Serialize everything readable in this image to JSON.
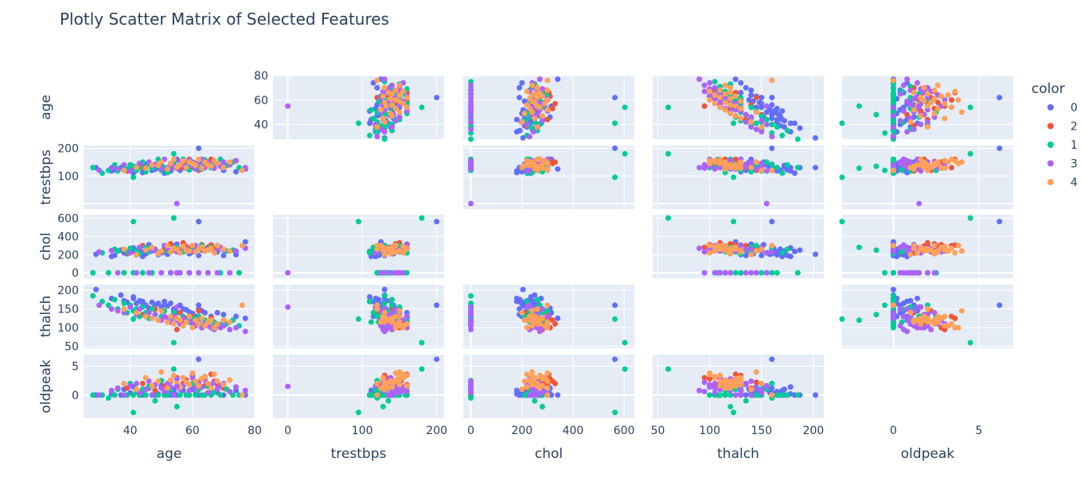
{
  "chart_data": {
    "type": "scatter",
    "title": "Plotly Scatter Matrix of Selected Features",
    "legend": {
      "title": "color",
      "placement": "top-right",
      "labels": [
        "0",
        "2",
        "1",
        "3",
        "4"
      ]
    },
    "colors": {
      "0": "#636efa",
      "2": "#ef553b",
      "1": "#00cc96",
      "3": "#ab63fa",
      "4": "#ffa15a",
      "panel_bg": "#e5ecf6",
      "grid": "#ffffff",
      "text": "#2a3f5f"
    },
    "diagonal_visible": false,
    "grid": true,
    "dimensions": [
      {
        "name": "age",
        "label": "age",
        "range": [
          25,
          80
        ],
        "ticks": [
          40,
          60,
          80
        ],
        "y_ticks_shown": [
          40,
          60,
          80
        ],
        "y_range": [
          28,
          80
        ]
      },
      {
        "name": "trestbps",
        "label": "trestbps",
        "range": [
          -20,
          210
        ],
        "ticks": [
          0,
          100,
          200
        ],
        "y_ticks_shown": [
          100,
          200
        ],
        "y_range": [
          -20,
          210
        ]
      },
      {
        "name": "chol",
        "label": "chol",
        "range": [
          -30,
          640
        ],
        "ticks": [
          0,
          200,
          400,
          600
        ],
        "y_ticks_shown": [
          0,
          200,
          400,
          600
        ],
        "y_range": [
          -60,
          640
        ]
      },
      {
        "name": "thalch",
        "label": "thalch",
        "range": [
          45,
          210
        ],
        "ticks": [
          50,
          100,
          150,
          200
        ],
        "y_ticks_shown": [
          50,
          100,
          150,
          200
        ],
        "y_range": [
          45,
          215
        ]
      },
      {
        "name": "oldpeak",
        "label": "oldpeak",
        "range": [
          -3,
          7
        ],
        "ticks": [
          0,
          5
        ],
        "y_ticks_shown": [
          0,
          5
        ],
        "y_range": [
          -4,
          7
        ]
      }
    ],
    "groups": [
      {
        "name": "0",
        "age": [
          29,
          34,
          35,
          37,
          38,
          39,
          40,
          41,
          41,
          42,
          43,
          44,
          44,
          45,
          46,
          47,
          48,
          49,
          50,
          51,
          51,
          52,
          53,
          54,
          54,
          55,
          56,
          57,
          58,
          59,
          60,
          61,
          62,
          63,
          64,
          66,
          68,
          70,
          74,
          77
        ],
        "trestbps": [
          130,
          118,
          122,
          130,
          138,
          120,
          140,
          130,
          110,
          120,
          132,
          128,
          112,
          142,
          150,
          120,
          124,
          130,
          140,
          110,
          125,
          128,
          118,
          132,
          150,
          160,
          120,
          130,
          128,
          140,
          150,
          145,
          130,
          125,
          138,
          160,
          144,
          120,
          115,
          125
        ],
        "chol": [
          204,
          180,
          192,
          250,
          220,
          210,
          260,
          275,
          235,
          198,
          240,
          230,
          180,
          210,
          310,
          260,
          245,
          200,
          220,
          226,
          265,
          205,
          230,
          270,
          290,
          315,
          240,
          280,
          270,
          210,
          230,
          260,
          190,
          250,
          240,
          305,
          230,
          190,
          200,
          340
        ],
        "thalch": [
          202,
          178,
          175,
          187,
          172,
          168,
          160,
          178,
          182,
          165,
          172,
          165,
          170,
          160,
          152,
          168,
          160,
          165,
          155,
          170,
          162,
          158,
          165,
          150,
          145,
          140,
          160,
          150,
          148,
          142,
          138,
          130,
          150,
          145,
          140,
          130,
          140,
          135,
          130,
          125
        ],
        "oldpeak": [
          0,
          0.2,
          0,
          0,
          1.0,
          0,
          0.4,
          1.4,
          0,
          0.6,
          0,
          0,
          0.8,
          0,
          1.2,
          0,
          0,
          0.2,
          1.6,
          0,
          0,
          0.4,
          0,
          1.0,
          0.6,
          0,
          1.2,
          0.8,
          0,
          0,
          1.0,
          0.2,
          0,
          1.4,
          0,
          0.6,
          0.4,
          0,
          0.8,
          0
        ]
      },
      {
        "name": "2",
        "age": [
          39,
          44,
          48,
          51,
          53,
          55,
          56,
          57,
          58,
          59,
          60,
          61,
          62,
          63,
          64,
          65,
          66,
          67,
          68,
          70
        ],
        "trestbps": [
          118,
          130,
          140,
          125,
          145,
          132,
          128,
          150,
          146,
          160,
          130,
          140,
          120,
          150,
          135,
          138,
          160,
          152,
          144,
          130
        ],
        "chol": [
          219,
          300,
          260,
          245,
          320,
          280,
          250,
          330,
          290,
          270,
          300,
          240,
          264,
          310,
          260,
          282,
          305,
          270,
          295,
          250
        ],
        "thalch": [
          140,
          135,
          150,
          130,
          120,
          95,
          140,
          110,
          125,
          115,
          130,
          105,
          145,
          100,
          120,
          115,
          125,
          110,
          105,
          120
        ],
        "oldpeak": [
          1.2,
          2.0,
          0.8,
          1.6,
          2.4,
          3.0,
          1.0,
          2.0,
          2.6,
          1.8,
          3.4,
          1.4,
          2.2,
          2.8,
          1.6,
          2.0,
          3.6,
          2.4,
          1.8,
          1.2
        ]
      },
      {
        "name": "1",
        "age": [
          28,
          31,
          33,
          35,
          36,
          38,
          39,
          40,
          41,
          42,
          43,
          44,
          45,
          46,
          47,
          48,
          49,
          50,
          51,
          52,
          53,
          54,
          55,
          56,
          57,
          58,
          59,
          60,
          61,
          62,
          63,
          64,
          65,
          66,
          67,
          69,
          71,
          73,
          75
        ],
        "trestbps": [
          130,
          110,
          120,
          140,
          118,
          130,
          125,
          140,
          135,
          120,
          130,
          150,
          115,
          142,
          128,
          135,
          160,
          120,
          130,
          112,
          138,
          145,
          128,
          150,
          160,
          135,
          122,
          140,
          130,
          125,
          150,
          158,
          145,
          130,
          140,
          160,
          138,
          150,
          130
        ],
        "chol": [
          0,
          220,
          0,
          260,
          240,
          0,
          230,
          270,
          0,
          250,
          210,
          0,
          280,
          230,
          0,
          250,
          220,
          0,
          300,
          240,
          0,
          260,
          280,
          0,
          230,
          250,
          0,
          270,
          240,
          0,
          300,
          260,
          0,
          280,
          230,
          0,
          240,
          250,
          0
        ],
        "thalch": [
          185,
          170,
          160,
          175,
          150,
          165,
          140,
          160,
          145,
          150,
          130,
          155,
          140,
          125,
          150,
          135,
          120,
          130,
          145,
          115,
          125,
          140,
          120,
          110,
          130,
          120,
          115,
          125,
          110,
          130,
          105,
          120,
          110,
          100,
          115,
          108,
          110,
          120,
          105
        ],
        "oldpeak": [
          0,
          0,
          -0.5,
          0,
          1.0,
          0,
          0,
          2.0,
          0,
          0.5,
          0,
          1.0,
          0,
          1.5,
          0,
          -1.0,
          0,
          2.5,
          0,
          0,
          1.0,
          0,
          -2.0,
          0,
          1.5,
          0,
          0,
          2.0,
          0,
          1.0,
          0,
          0,
          1.5,
          0,
          0.5,
          0,
          1.0,
          0,
          0
        ]
      },
      {
        "name": "3",
        "age": [
          30,
          34,
          36,
          38,
          40,
          42,
          43,
          45,
          46,
          47,
          48,
          50,
          51,
          52,
          53,
          54,
          55,
          56,
          57,
          58,
          59,
          60,
          61,
          62,
          63,
          64,
          65,
          66,
          67,
          68,
          69,
          70,
          72,
          74,
          77
        ],
        "trestbps": [
          120,
          130,
          125,
          140,
          118,
          132,
          145,
          128,
          150,
          138,
          142,
          125,
          160,
          130,
          145,
          135,
          128,
          150,
          140,
          132,
          155,
          138,
          125,
          145,
          160,
          130,
          150,
          140,
          128,
          145,
          135,
          150,
          140,
          155,
          130
        ],
        "chol": [
          230,
          245,
          0,
          260,
          220,
          0,
          280,
          250,
          0,
          240,
          260,
          0,
          300,
          270,
          0,
          250,
          230,
          0,
          280,
          260,
          0,
          240,
          300,
          0,
          270,
          250,
          0,
          260,
          230,
          0,
          280,
          250,
          0,
          240,
          270
        ],
        "thalch": [
          160,
          150,
          145,
          140,
          155,
          135,
          150,
          130,
          140,
          125,
          135,
          120,
          130,
          125,
          115,
          130,
          120,
          110,
          125,
          115,
          120,
          110,
          105,
          115,
          100,
          110,
          105,
          100,
          95,
          110,
          100,
          105,
          95,
          100,
          90
        ],
        "oldpeak": [
          0,
          0.8,
          1.2,
          0,
          1.6,
          2.0,
          0.4,
          1.0,
          2.4,
          0,
          1.8,
          1.2,
          0.6,
          2.0,
          1.4,
          0,
          2.8,
          1.0,
          1.6,
          2.2,
          0.8,
          3.0,
          1.2,
          2.0,
          1.4,
          2.6,
          0.4,
          1.8,
          2.2,
          1.0,
          1.6,
          2.0,
          0.6,
          1.4,
          0.8
        ]
      },
      {
        "name": "4",
        "age": [
          38,
          42,
          45,
          47,
          49,
          50,
          52,
          53,
          54,
          55,
          56,
          57,
          58,
          59,
          60,
          61,
          62,
          63,
          64,
          65,
          66,
          67,
          68,
          70,
          72,
          76
        ],
        "trestbps": [
          120,
          130,
          128,
          140,
          138,
          150,
          125,
          145,
          160,
          132,
          140,
          155,
          130,
          150,
          145,
          138,
          160,
          128,
          150,
          140,
          135,
          155,
          145,
          130,
          150,
          120
        ],
        "chol": [
          260,
          200,
          250,
          280,
          210,
          240,
          300,
          230,
          270,
          260,
          220,
          290,
          250,
          240,
          300,
          230,
          260,
          280,
          240,
          250,
          270,
          220,
          300,
          260,
          240,
          300
        ],
        "thalch": [
          150,
          140,
          130,
          125,
          120,
          145,
          115,
          130,
          110,
          125,
          120,
          105,
          115,
          130,
          100,
          120,
          110,
          125,
          105,
          115,
          120,
          100,
          110,
          120,
          115,
          160
        ],
        "oldpeak": [
          2.0,
          1.0,
          3.0,
          1.6,
          2.4,
          4.0,
          1.2,
          2.6,
          3.4,
          2.0,
          1.4,
          3.0,
          2.2,
          1.8,
          3.8,
          2.4,
          1.6,
          2.8,
          3.2,
          2.0,
          1.2,
          3.6,
          2.4,
          1.8,
          2.6,
          0
        ]
      }
    ],
    "outliers": [
      {
        "group": "3",
        "age": 55,
        "trestbps": 0,
        "chol": 0,
        "thalch": 155,
        "oldpeak": 1.5
      },
      {
        "group": "1",
        "age": 41,
        "trestbps": 95,
        "chol": 564,
        "thalch": 123,
        "oldpeak": -3
      },
      {
        "group": "0",
        "age": 62,
        "trestbps": 200,
        "chol": 564,
        "thalch": 160,
        "oldpeak": 6.2
      },
      {
        "group": "1",
        "age": 54,
        "trestbps": 180,
        "chol": 603,
        "thalch": 60,
        "oldpeak": 4.5
      }
    ]
  }
}
